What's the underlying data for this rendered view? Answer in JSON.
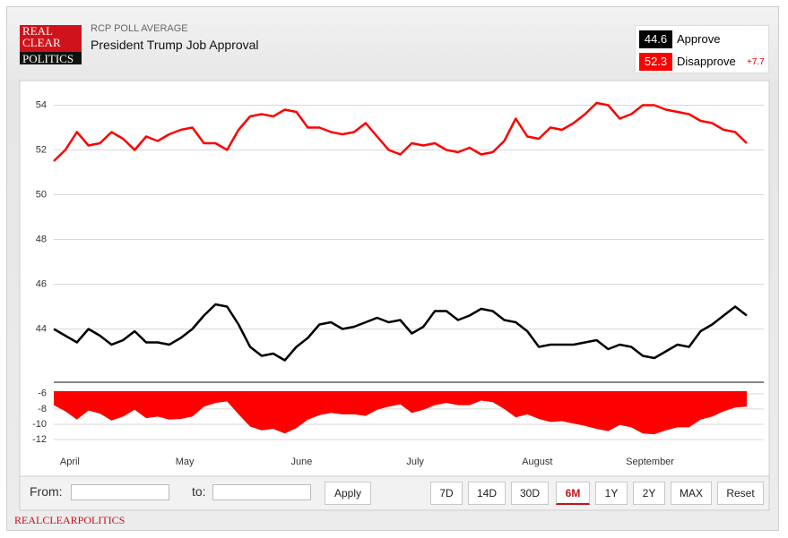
{
  "header": {
    "kicker": "RCP POLL AVERAGE",
    "title": "President Trump Job Approval",
    "logo": [
      "REAL",
      "CLEAR",
      "POLITICS"
    ]
  },
  "chart_data": [
    {
      "type": "line",
      "categories": [
        null,
        "April",
        null,
        null,
        null,
        null,
        null,
        null,
        null,
        null,
        null,
        "May",
        null,
        null,
        null,
        null,
        null,
        null,
        null,
        null,
        null,
        "June",
        null,
        null,
        null,
        null,
        null,
        null,
        null,
        null,
        null,
        "July",
        null,
        null,
        null,
        null,
        null,
        null,
        null,
        null,
        null,
        "August",
        null,
        null,
        null,
        null,
        null,
        null,
        null,
        null,
        "September",
        null,
        null,
        null,
        null,
        null,
        null,
        null,
        null,
        null,
        null
      ],
      "series": [
        {
          "name": "Approve",
          "color": "#000000",
          "latest": 44.6,
          "values": [
            44.0,
            43.7,
            43.4,
            44.0,
            43.7,
            43.3,
            43.5,
            43.9,
            43.4,
            43.4,
            43.3,
            43.6,
            44.0,
            44.6,
            45.1,
            45.0,
            44.2,
            43.2,
            42.8,
            42.9,
            42.6,
            43.2,
            43.6,
            44.2,
            44.3,
            44.0,
            44.1,
            44.3,
            44.5,
            44.3,
            44.4,
            43.8,
            44.1,
            44.8,
            44.8,
            44.4,
            44.6,
            44.9,
            44.8,
            44.4,
            44.3,
            43.9,
            43.2,
            43.3,
            43.3,
            43.3,
            43.4,
            43.5,
            43.1,
            43.3,
            43.2,
            42.8,
            42.7,
            43.0,
            43.3,
            43.2,
            43.9,
            44.2,
            44.6,
            45.0,
            44.6
          ]
        },
        {
          "name": "Disapprove",
          "color": "#ff0000",
          "latest": 52.3,
          "values": [
            51.5,
            52.0,
            52.8,
            52.2,
            52.3,
            52.8,
            52.5,
            52.0,
            52.6,
            52.4,
            52.7,
            52.9,
            53.0,
            52.3,
            52.3,
            52.0,
            52.9,
            53.5,
            53.6,
            53.5,
            53.8,
            53.7,
            53.0,
            53.0,
            52.8,
            52.7,
            52.8,
            53.2,
            52.6,
            52.0,
            51.8,
            52.3,
            52.2,
            52.3,
            52.0,
            51.9,
            52.1,
            51.8,
            51.9,
            52.4,
            53.4,
            52.6,
            52.5,
            53.0,
            52.9,
            53.2,
            53.6,
            54.1,
            54.0,
            53.4,
            53.6,
            54.0,
            54.0,
            53.8,
            53.7,
            53.6,
            53.3,
            53.2,
            52.9,
            52.8,
            52.3
          ]
        }
      ],
      "spread": "+7.7",
      "ylim": [
        41.7,
        54.9
      ],
      "yticks": [
        44,
        46,
        48,
        50,
        52,
        54
      ],
      "grid": true
    },
    {
      "type": "area",
      "color": "#ff0000",
      "values": [
        -7.5,
        -8.3,
        -9.4,
        -8.2,
        -8.6,
        -9.5,
        -9.0,
        -8.1,
        -9.2,
        -9.0,
        -9.4,
        -9.3,
        -9.0,
        -7.7,
        -7.2,
        -7.0,
        -8.7,
        -10.3,
        -10.8,
        -10.6,
        -11.2,
        -10.5,
        -9.4,
        -8.8,
        -8.5,
        -8.7,
        -8.7,
        -8.9,
        -8.1,
        -7.7,
        -7.4,
        -8.5,
        -8.1,
        -7.5,
        -7.2,
        -7.5,
        -7.5,
        -6.9,
        -7.1,
        -8.0,
        -9.1,
        -8.7,
        -9.3,
        -9.7,
        -9.6,
        -9.9,
        -10.2,
        -10.6,
        -10.9,
        -10.1,
        -10.4,
        -11.2,
        -11.3,
        -10.8,
        -10.4,
        -10.4,
        -9.4,
        -9.0,
        -8.3,
        -7.8,
        -7.7
      ],
      "ylim": [
        -12.7,
        -5.2
      ],
      "yticks": [
        -6,
        -8,
        -10,
        -12
      ],
      "grid": true
    }
  ],
  "controls": {
    "from": "From:",
    "to": "to:",
    "apply": "Apply",
    "ranges": [
      "7D",
      "14D",
      "30D",
      "6M",
      "1Y",
      "2Y",
      "MAX",
      "Reset"
    ],
    "active": "6M"
  },
  "footer": "REALCLEARPOLITICS"
}
